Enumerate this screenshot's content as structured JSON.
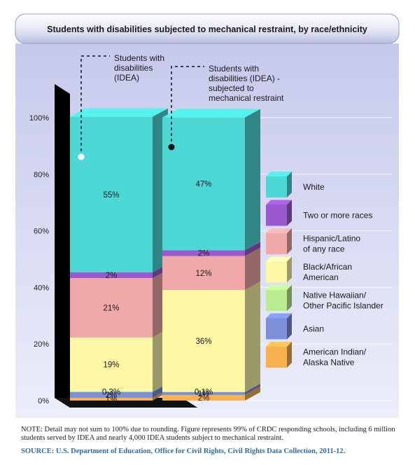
{
  "chart_data": {
    "type": "bar",
    "stacked": true,
    "three_d": true,
    "title": "Students with disabilities subjected to mechanical restraint, by race/ethnicity",
    "categories": [
      "Students with disabilities (IDEA)",
      "Students with disabilities (IDEA) - subjected to mechanical restraint"
    ],
    "category_callouts": [
      [
        "Students with",
        "disabilities",
        "(IDEA)"
      ],
      [
        "Students with",
        "disabilities (IDEA) -",
        "subjected to",
        "mechanical restraint"
      ]
    ],
    "yticks": [
      "0%",
      "20%",
      "40%",
      "60%",
      "80%",
      "100%"
    ],
    "ylim": [
      0,
      100
    ],
    "legend_position": "right",
    "series": [
      {
        "name": "American Indian/ Alaska Native",
        "legend_lines": [
          "American Indian/",
          "Alaska Native"
        ],
        "color": "#f7b24f",
        "values": [
          1,
          2
        ],
        "labels": [
          "1%",
          "2%"
        ]
      },
      {
        "name": "Asian",
        "legend_lines": [
          "Asian"
        ],
        "color": "#7b8fdb",
        "values": [
          2,
          1
        ],
        "labels": [
          "2%",
          "1%"
        ]
      },
      {
        "name": "Native Hawaiian/ Other Pacific Islander",
        "legend_lines": [
          "Native Hawaiian/",
          "Other Pacific Islander"
        ],
        "color": "#b8ec8e",
        "values": [
          0.3,
          0.1
        ],
        "labels": [
          "0.3%",
          "0.1%"
        ]
      },
      {
        "name": "Black/African American",
        "legend_lines": [
          "Black/African",
          "American"
        ],
        "color": "#fdf6a4",
        "values": [
          19,
          36
        ],
        "labels": [
          "19%",
          "36%"
        ]
      },
      {
        "name": "Hispanic/Latino of any race",
        "legend_lines": [
          "Hispanic/Latino",
          "of any race"
        ],
        "color": "#f0a8a8",
        "values": [
          21,
          12
        ],
        "labels": [
          "21%",
          "12%"
        ]
      },
      {
        "name": "Two or more races",
        "legend_lines": [
          "Two or more races"
        ],
        "color": "#9b59d0",
        "values": [
          2,
          2
        ],
        "labels": [
          "2%",
          "2%"
        ]
      },
      {
        "name": "White",
        "legend_lines": [
          "White"
        ],
        "color": "#4dd8d6",
        "values": [
          55,
          47
        ],
        "labels": [
          "55%",
          "47%"
        ]
      }
    ]
  },
  "note": "NOTE: Detail may not sum to 100% due to rounding.  Figure represents 99% of CRDC responding schools, including 6 million students served by IDEA and nearly 4,000 IDEA students subject to mechanical restraint.",
  "source": "SOURCE: U.S. Department of Education, Office for Civil Rights, Civil Rights Data Collection, 2011-12."
}
